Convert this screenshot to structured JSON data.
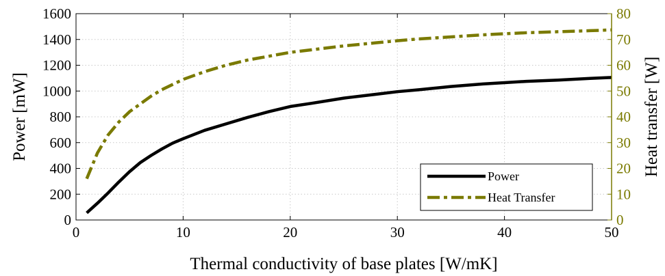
{
  "chart_data": {
    "type": "line",
    "xlabel": "Thermal conductivity of base plates [W/mK]",
    "ylabel": "Power [mW]",
    "y2label": "Heat transfer [W]",
    "xlim": [
      0,
      50
    ],
    "ylim": [
      0,
      1600
    ],
    "y2lim": [
      0,
      80
    ],
    "x_ticks": [
      0,
      10,
      20,
      30,
      40,
      50
    ],
    "y_ticks": [
      0,
      200,
      400,
      600,
      800,
      1000,
      1200,
      1400,
      1600
    ],
    "y2_ticks": [
      0,
      10,
      20,
      30,
      40,
      50,
      60,
      70,
      80
    ],
    "grid": true,
    "legend_position": "lower-right",
    "series": [
      {
        "name": "Power",
        "axis": "left",
        "color": "#000000",
        "style": "solid",
        "x": [
          1,
          2,
          3,
          4,
          5,
          6,
          7,
          8,
          9,
          10,
          12,
          14,
          16,
          18,
          20,
          22,
          25,
          28,
          30,
          32,
          35,
          38,
          40,
          42,
          45,
          48,
          50
        ],
        "values": [
          55,
          130,
          210,
          295,
          375,
          445,
          500,
          550,
          595,
          630,
          695,
          745,
          795,
          840,
          880,
          905,
          945,
          975,
          995,
          1010,
          1035,
          1055,
          1065,
          1075,
          1085,
          1098,
          1105
        ]
      },
      {
        "name": "Heat Transfer",
        "axis": "right",
        "color": "#7a7a00",
        "style": "dashdot",
        "x": [
          1,
          2,
          3,
          4,
          5,
          6,
          7,
          8,
          9,
          10,
          12,
          14,
          16,
          18,
          20,
          22,
          25,
          28,
          30,
          32,
          35,
          38,
          40,
          42,
          45,
          48,
          50
        ],
        "values": [
          16,
          26,
          33,
          38,
          42,
          45,
          48,
          50.5,
          52.5,
          54.5,
          57.5,
          60,
          62,
          63.5,
          65,
          66,
          67.5,
          68.7,
          69.5,
          70.2,
          71,
          71.8,
          72.2,
          72.6,
          73,
          73.4,
          73.7
        ]
      }
    ]
  }
}
